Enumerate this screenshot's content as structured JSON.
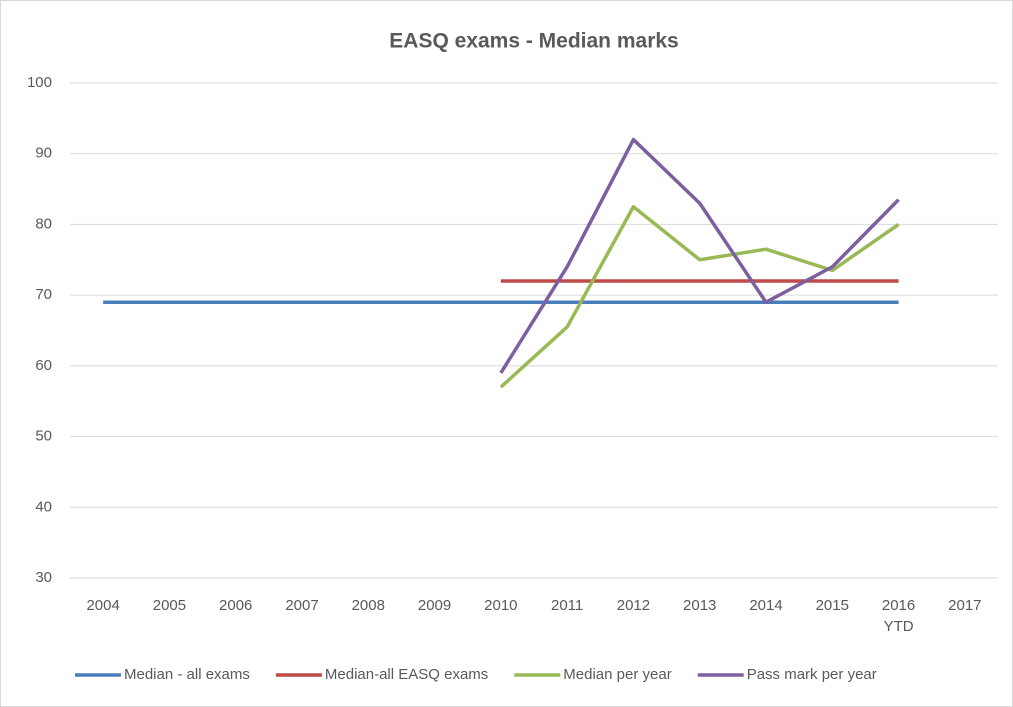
{
  "chart_data": {
    "type": "line",
    "title": "EASQ exams - Median marks",
    "categories": [
      "2004",
      "2005",
      "2006",
      "2007",
      "2008",
      "2009",
      "2010",
      "2011",
      "2012",
      "2013",
      "2014",
      "2015",
      "2016 YTD",
      "2017"
    ],
    "series": [
      {
        "name": "Median - all exams",
        "color": "#4a7ebb",
        "values": [
          69,
          69,
          69,
          69,
          69,
          69,
          69,
          69,
          69,
          69,
          69,
          69,
          69,
          null
        ]
      },
      {
        "name": "Median-all EASQ exams",
        "color": "#be4b48",
        "values": [
          null,
          null,
          null,
          null,
          null,
          null,
          72,
          72,
          72,
          72,
          72,
          72,
          72,
          null
        ]
      },
      {
        "name": "Median per year",
        "color": "#98b954",
        "values": [
          null,
          null,
          null,
          null,
          null,
          null,
          57,
          65.5,
          82.5,
          75,
          76.5,
          73.5,
          80,
          null
        ]
      },
      {
        "name": "Pass mark per year",
        "color": "#7d5fa0",
        "values": [
          null,
          null,
          null,
          null,
          null,
          null,
          59,
          74,
          92,
          83,
          69,
          74,
          83.5,
          null
        ]
      }
    ],
    "ylim": [
      30,
      100
    ],
    "yticks": [
      30,
      40,
      50,
      60,
      70,
      80,
      90,
      100
    ],
    "grid": true,
    "legend": "bottom"
  }
}
